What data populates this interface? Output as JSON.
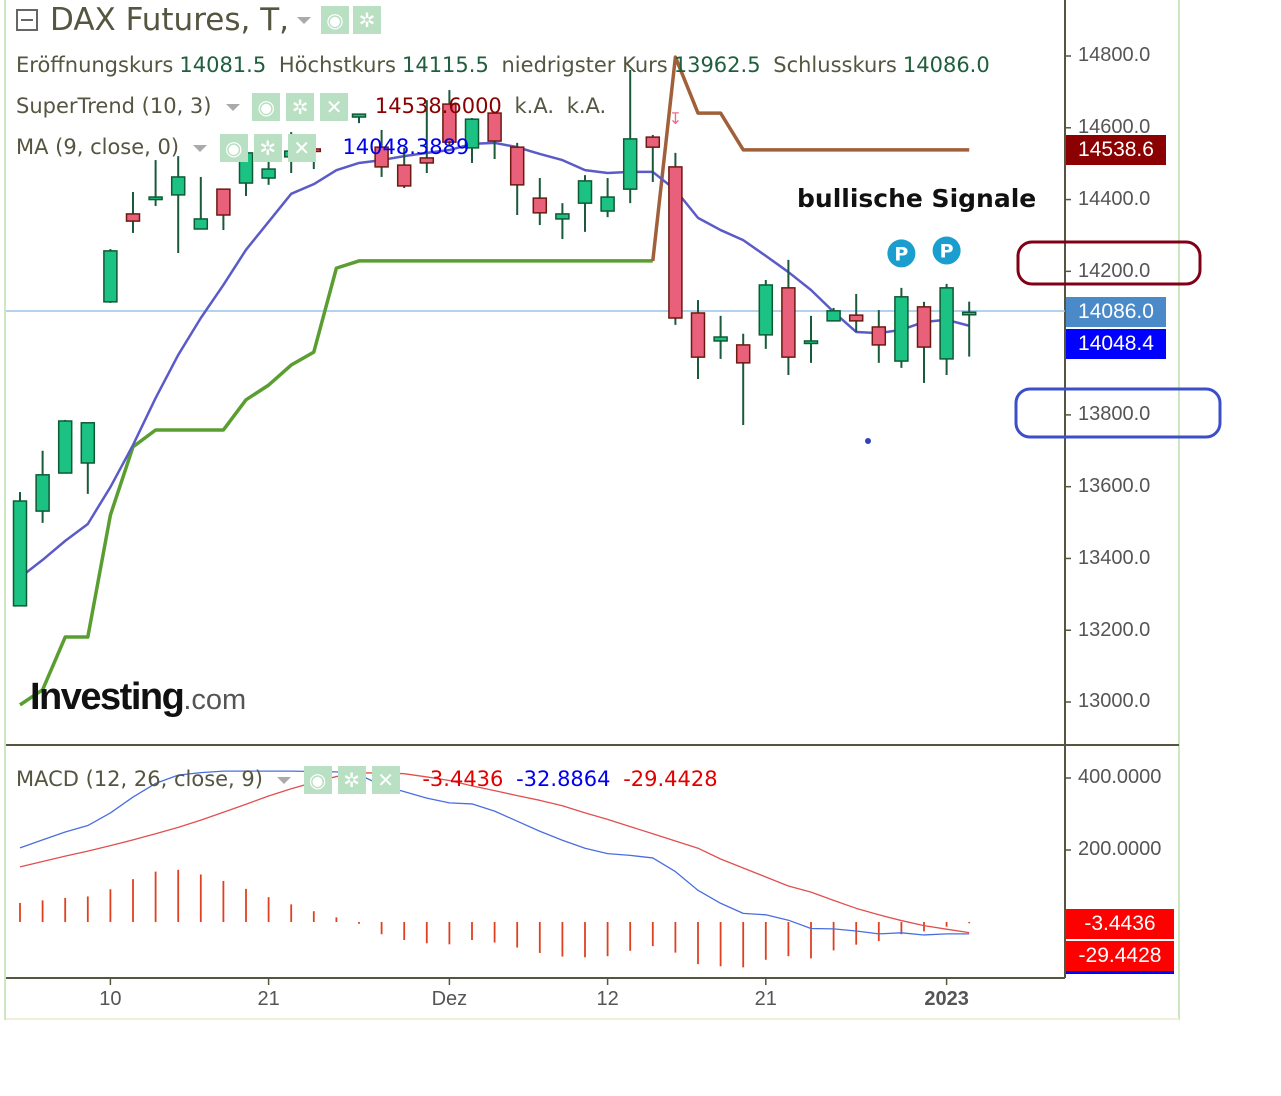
{
  "header": {
    "title": "DAX Futures, T,",
    "ohlc": [
      {
        "label": "Eröffnungskurs",
        "value": "14081.5"
      },
      {
        "label": "Höchstkurs",
        "value": "14115.5"
      },
      {
        "label": "niedrigster Kurs",
        "value": "13962.5"
      },
      {
        "label": "Schlusskurs",
        "value": "14086.0"
      }
    ]
  },
  "indicators": {
    "supertrend": {
      "name": "SuperTrend (10, 3)",
      "value": "14538.6000",
      "extra1": "k.A.",
      "extra2": "k.A."
    },
    "ma": {
      "name": "MA (9, close, 0)",
      "value": "14048.3889"
    },
    "macd": {
      "name": "MACD (12, 26, close, 9)",
      "hist": "-3.4436",
      "macd": "-32.8864",
      "signal": "-29.4428"
    }
  },
  "icons": {
    "eye": "eye-icon",
    "gear": "gear-icon",
    "close": "close-icon"
  },
  "annotation": "bullische Signale",
  "logo": {
    "main": "Investing",
    "suffix": ".com"
  },
  "price_axis": [
    "14800.0",
    "14600.0",
    "14400.0",
    "14200.0",
    "13800.0",
    "13600.0",
    "13400.0",
    "13200.0",
    "13000.0"
  ],
  "price_labels": {
    "supertrend": "14538.6",
    "close": "14086.0",
    "ma": "14048.4"
  },
  "macd_axis": [
    "400.0000",
    "200.0000"
  ],
  "macd_labels": {
    "hist": "-3.4436",
    "signal": "-29.4428"
  },
  "date_labels": [
    {
      "text": "10",
      "index": 4
    },
    {
      "text": "21",
      "index": 11
    },
    {
      "text": "Dez",
      "index": 19
    },
    {
      "text": "12",
      "index": 26
    },
    {
      "text": "21",
      "index": 33
    },
    {
      "text": "2023",
      "index": 41
    }
  ],
  "colors": {
    "up": "#1cc283",
    "down": "#e9607a",
    "ma": "#5b5bc8",
    "st_up": "#5a9e32",
    "st_down": "#a0603a",
    "macd": "#4a6ee0",
    "signal": "#e05050",
    "hist": "#e04020"
  },
  "chart_data": {
    "type": "candlestick",
    "price_range": [
      13000,
      14800
    ],
    "candles_ohlc": [
      [
        13268,
        13585,
        13268,
        13560
      ],
      [
        13532,
        13700,
        13499,
        13633
      ],
      [
        13638,
        13786,
        13638,
        13783
      ],
      [
        13666,
        13778,
        13580,
        13778
      ],
      [
        14115,
        14262,
        14112,
        14257
      ],
      [
        14360,
        14421,
        14307,
        14340
      ],
      [
        14402,
        14510,
        14382,
        14407
      ],
      [
        14413,
        14521,
        14251,
        14463
      ],
      [
        14318,
        14463,
        14318,
        14346
      ],
      [
        14429,
        14429,
        14315,
        14357
      ],
      [
        14446,
        14530,
        14410,
        14530
      ],
      [
        14460,
        14507,
        14441,
        14485
      ],
      [
        14519,
        14588,
        14474,
        14535
      ],
      [
        14541,
        14546,
        14485,
        14535
      ],
      [
        14655,
        14669,
        14622,
        14636
      ],
      [
        14630,
        14638,
        14613,
        14638
      ],
      [
        14546,
        14594,
        14463,
        14491
      ],
      [
        14496,
        14544,
        14432,
        14438
      ],
      [
        14516,
        14677,
        14474,
        14502
      ],
      [
        14666,
        14705,
        14552,
        14560
      ],
      [
        14544,
        14627,
        14502,
        14624
      ],
      [
        14641,
        14644,
        14513,
        14563
      ],
      [
        14546,
        14558,
        14357,
        14441
      ],
      [
        14404,
        14460,
        14329,
        14363
      ],
      [
        14346,
        14390,
        14290,
        14360
      ],
      [
        14390,
        14468,
        14310,
        14452
      ],
      [
        14368,
        14460,
        14351,
        14407
      ],
      [
        14429,
        14761,
        14390,
        14569
      ],
      [
        14574,
        14580,
        14449,
        14546
      ],
      [
        14491,
        14530,
        14051,
        14070
      ],
      [
        14084,
        14120,
        13900,
        13961
      ],
      [
        14006,
        14076,
        13956,
        14017
      ],
      [
        13995,
        14026,
        13772,
        13945
      ],
      [
        14023,
        14176,
        13984,
        14162
      ],
      [
        14154,
        14232,
        13911,
        13961
      ],
      [
        14000,
        14076,
        13945,
        14006
      ],
      [
        14062,
        14098,
        14062,
        14090
      ],
      [
        14078,
        14137,
        14031,
        14062
      ],
      [
        14045,
        14092,
        13945,
        13995
      ],
      [
        13950,
        14154,
        13931,
        14129
      ],
      [
        14101,
        14115,
        13889,
        13989
      ],
      [
        13956,
        14165,
        13911,
        14154
      ],
      [
        14081.5,
        14115.5,
        13962.5,
        14086.0
      ]
    ],
    "ma9": [
      13347,
      13396,
      13449,
      13496,
      13599,
      13716,
      13847,
      13967,
      14070,
      14162,
      14260,
      14338,
      14416,
      14443,
      14482,
      14502,
      14510,
      14521,
      14530,
      14538,
      14555,
      14558,
      14546,
      14527,
      14510,
      14482,
      14474,
      14477,
      14477,
      14427,
      14349,
      14315,
      14287,
      14243,
      14198,
      14148,
      14087,
      14031,
      14028,
      14037,
      14059,
      14065,
      14048.4
    ],
    "supertrend_up": [
      12992,
      13034,
      13181,
      13181,
      13521,
      13711,
      13758,
      13758,
      13758,
      13758,
      13842,
      13883,
      13939,
      13975,
      14209,
      14229,
      14229,
      14229,
      14229,
      14229,
      14229,
      14229,
      14229,
      14229,
      14229,
      14229,
      14229,
      14229,
      14229
    ],
    "supertrend_down": [
      [
        28,
        14229
      ],
      [
        29,
        14797
      ],
      [
        30,
        14641
      ],
      [
        31,
        14641
      ],
      [
        32,
        14538.6
      ],
      [
        42,
        14538.6
      ]
    ],
    "signal_markers": [
      {
        "index": 39,
        "label": "P",
        "price": 14250
      },
      {
        "index": 41,
        "label": "P",
        "price": 14258
      }
    ],
    "reversal_marker": {
      "index": 29,
      "price": 14610,
      "glyph": "↧"
    },
    "macd_range": [
      -80,
      420
    ],
    "macd": [
      206,
      228,
      250,
      268,
      303,
      347,
      385,
      408,
      415,
      419,
      419,
      419,
      419,
      418,
      417,
      409,
      380,
      362,
      344,
      331,
      328,
      308,
      280,
      252,
      227,
      205,
      190,
      185,
      178,
      140,
      88,
      52,
      24,
      20,
      5,
      -18,
      -19,
      -25,
      -33,
      -30,
      -36,
      -33,
      -32.8864
    ],
    "signal": [
      153,
      168,
      183,
      197,
      212,
      228,
      245,
      263,
      283,
      305,
      327,
      350,
      370,
      388,
      404,
      414,
      414,
      412,
      403,
      393,
      378,
      365,
      351,
      338,
      323,
      303,
      285,
      265,
      245,
      225,
      205,
      175,
      150,
      125,
      100,
      83,
      60,
      38,
      20,
      4,
      -10,
      -20,
      -29.4428
    ]
  }
}
